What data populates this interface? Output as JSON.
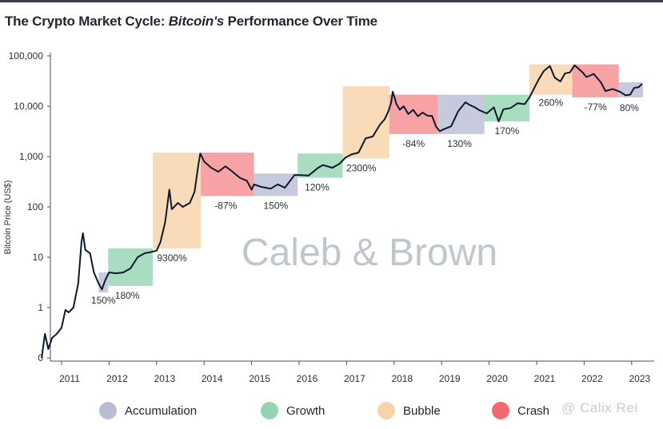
{
  "title": {
    "prefix": "The Crypto Market Cycle: ",
    "emphasis": "Bitcoin's",
    "suffix": " Performance Over Time"
  },
  "watermark": "Caleb & Brown",
  "corner_watermark": "@ Calix Rei",
  "legend": [
    {
      "label": "Accumulation",
      "color": "#b9bdd3"
    },
    {
      "label": "Growth",
      "color": "#93d5b2"
    },
    {
      "label": "Bubble",
      "color": "#f8d2a8"
    },
    {
      "label": "Crash",
      "color": "#f26a6d"
    }
  ],
  "chart_data": {
    "type": "line",
    "title": "The Crypto Market Cycle: Bitcoin's Performance Over Time",
    "xlabel": "",
    "ylabel": "Bitcoin Price (US$)",
    "y_scale": "log",
    "ylim": [
      0.1,
      100000
    ],
    "xlim": [
      2010.55,
      2023.3
    ],
    "y_ticks": [
      {
        "value": 0.1,
        "label": "0"
      },
      {
        "value": 1,
        "label": "1"
      },
      {
        "value": 10,
        "label": "10"
      },
      {
        "value": 100,
        "label": "100"
      },
      {
        "value": 1000,
        "label": "1,000"
      },
      {
        "value": 10000,
        "label": "10,000"
      },
      {
        "value": 100000,
        "label": "100,000"
      }
    ],
    "x_ticks": [
      "2011",
      "2012",
      "2013",
      "2014",
      "2015",
      "2016",
      "2017",
      "2018",
      "2019",
      "2020",
      "2021",
      "2022",
      "2023"
    ],
    "series": [
      {
        "name": "Bitcoin price",
        "color": "#0c1a2b",
        "points": [
          [
            2010.58,
            0.1
          ],
          [
            2010.65,
            0.3
          ],
          [
            2010.72,
            0.15
          ],
          [
            2010.8,
            0.25
          ],
          [
            2010.9,
            0.3
          ],
          [
            2011.0,
            0.4
          ],
          [
            2011.08,
            0.9
          ],
          [
            2011.15,
            0.8
          ],
          [
            2011.25,
            1.0
          ],
          [
            2011.35,
            3.0
          ],
          [
            2011.42,
            20.0
          ],
          [
            2011.45,
            30.0
          ],
          [
            2011.5,
            14.0
          ],
          [
            2011.6,
            12.0
          ],
          [
            2011.68,
            5.0
          ],
          [
            2011.78,
            3.0
          ],
          [
            2011.85,
            2.3
          ],
          [
            2011.92,
            3.5
          ],
          [
            2012.0,
            5.0
          ],
          [
            2012.15,
            4.8
          ],
          [
            2012.3,
            5.0
          ],
          [
            2012.45,
            6.0
          ],
          [
            2012.6,
            10.0
          ],
          [
            2012.75,
            12.0
          ],
          [
            2012.85,
            12.5
          ],
          [
            2013.0,
            13.5
          ],
          [
            2013.08,
            20.0
          ],
          [
            2013.18,
            50.0
          ],
          [
            2013.27,
            220.0
          ],
          [
            2013.32,
            90.0
          ],
          [
            2013.45,
            120.0
          ],
          [
            2013.55,
            100.0
          ],
          [
            2013.7,
            120.0
          ],
          [
            2013.8,
            200.0
          ],
          [
            2013.88,
            700.0
          ],
          [
            2013.92,
            1150.0
          ],
          [
            2014.0,
            800.0
          ],
          [
            2014.15,
            600.0
          ],
          [
            2014.3,
            500.0
          ],
          [
            2014.45,
            640.0
          ],
          [
            2014.6,
            500.0
          ],
          [
            2014.75,
            380.0
          ],
          [
            2014.9,
            330.0
          ],
          [
            2015.0,
            220.0
          ],
          [
            2015.05,
            280.0
          ],
          [
            2015.2,
            250.0
          ],
          [
            2015.4,
            230.0
          ],
          [
            2015.55,
            280.0
          ],
          [
            2015.7,
            240.0
          ],
          [
            2015.8,
            320.0
          ],
          [
            2015.9,
            430.0
          ],
          [
            2016.0,
            430.0
          ],
          [
            2016.2,
            420.0
          ],
          [
            2016.4,
            600.0
          ],
          [
            2016.5,
            680.0
          ],
          [
            2016.7,
            600.0
          ],
          [
            2016.85,
            720.0
          ],
          [
            2016.98,
            960.0
          ],
          [
            2017.1,
            1100.0
          ],
          [
            2017.25,
            1200.0
          ],
          [
            2017.4,
            2300.0
          ],
          [
            2017.55,
            2500.0
          ],
          [
            2017.7,
            4300.0
          ],
          [
            2017.8,
            5500.0
          ],
          [
            2017.88,
            8000.0
          ],
          [
            2017.94,
            12000.0
          ],
          [
            2017.97,
            19500.0
          ],
          [
            2018.05,
            11000.0
          ],
          [
            2018.12,
            8500.0
          ],
          [
            2018.2,
            10000.0
          ],
          [
            2018.3,
            7000.0
          ],
          [
            2018.4,
            8500.0
          ],
          [
            2018.5,
            6300.0
          ],
          [
            2018.6,
            7500.0
          ],
          [
            2018.7,
            6500.0
          ],
          [
            2018.8,
            6400.0
          ],
          [
            2018.88,
            4000.0
          ],
          [
            2018.96,
            3200.0
          ],
          [
            2019.05,
            3500.0
          ],
          [
            2019.2,
            4000.0
          ],
          [
            2019.35,
            8000.0
          ],
          [
            2019.5,
            12000.0
          ],
          [
            2019.6,
            10500.0
          ],
          [
            2019.7,
            9500.0
          ],
          [
            2019.8,
            8300.0
          ],
          [
            2019.95,
            7200.0
          ],
          [
            2020.1,
            9500.0
          ],
          [
            2020.2,
            5000.0
          ],
          [
            2020.3,
            8700.0
          ],
          [
            2020.45,
            9200.0
          ],
          [
            2020.6,
            11500.0
          ],
          [
            2020.75,
            11000.0
          ],
          [
            2020.85,
            15000.0
          ],
          [
            2020.95,
            23000.0
          ],
          [
            2021.05,
            35000.0
          ],
          [
            2021.15,
            50000.0
          ],
          [
            2021.28,
            63000.0
          ],
          [
            2021.38,
            37000.0
          ],
          [
            2021.5,
            31000.0
          ],
          [
            2021.6,
            45000.0
          ],
          [
            2021.7,
            47000.0
          ],
          [
            2021.8,
            65000.0
          ],
          [
            2021.87,
            57000.0
          ],
          [
            2021.97,
            47000.0
          ],
          [
            2022.05,
            38000.0
          ],
          [
            2022.2,
            44000.0
          ],
          [
            2022.35,
            30000.0
          ],
          [
            2022.45,
            20000.0
          ],
          [
            2022.6,
            22000.0
          ],
          [
            2022.75,
            19500.0
          ],
          [
            2022.87,
            16500.0
          ],
          [
            2022.97,
            17000.0
          ],
          [
            2023.05,
            23000.0
          ],
          [
            2023.15,
            24000.0
          ],
          [
            2023.22,
            28000.0
          ]
        ]
      }
    ],
    "phases": [
      {
        "phase": "Accumulation",
        "x0": 2011.78,
        "x1": 2011.98,
        "y_low": 2.0,
        "y_high": 5.0,
        "label": "150%"
      },
      {
        "phase": "Growth",
        "x0": 2011.98,
        "x1": 2012.92,
        "y_low": 2.7,
        "y_high": 15.0,
        "label": "180%"
      },
      {
        "phase": "Bubble",
        "x0": 2012.92,
        "x1": 2013.93,
        "y_low": 15.0,
        "y_high": 1200.0,
        "label": "9300%"
      },
      {
        "phase": "Crash",
        "x0": 2013.93,
        "x1": 2015.05,
        "y_low": 165.0,
        "y_high": 1200.0,
        "label": "-87%"
      },
      {
        "phase": "Accumulation",
        "x0": 2015.05,
        "x1": 2015.97,
        "y_low": 165.0,
        "y_high": 460.0,
        "label": "150%"
      },
      {
        "phase": "Growth",
        "x0": 2015.97,
        "x1": 2016.92,
        "y_low": 380.0,
        "y_high": 1150.0,
        "label": "120%"
      },
      {
        "phase": "Bubble",
        "x0": 2016.92,
        "x1": 2017.9,
        "y_low": 920.0,
        "y_high": 25000.0,
        "label": "2300%"
      },
      {
        "phase": "Crash",
        "x0": 2017.9,
        "x1": 2018.92,
        "y_low": 2800.0,
        "y_high": 17000.0,
        "label": "-84%"
      },
      {
        "phase": "Accumulation",
        "x0": 2018.92,
        "x1": 2019.9,
        "y_low": 2800.0,
        "y_high": 17000.0,
        "label": "130%"
      },
      {
        "phase": "Growth",
        "x0": 2019.9,
        "x1": 2020.85,
        "y_low": 5000.0,
        "y_high": 17000.0,
        "label": "170%"
      },
      {
        "phase": "Bubble",
        "x0": 2020.85,
        "x1": 2021.75,
        "y_low": 17000.0,
        "y_high": 68000.0,
        "label": "260%"
      },
      {
        "phase": "Crash",
        "x0": 2021.75,
        "x1": 2022.73,
        "y_low": 15000.0,
        "y_high": 68000.0,
        "label": "-77%"
      },
      {
        "phase": "Accumulation",
        "x0": 2022.73,
        "x1": 2023.24,
        "y_low": 15000.0,
        "y_high": 30000.0,
        "label": "80%"
      }
    ]
  }
}
